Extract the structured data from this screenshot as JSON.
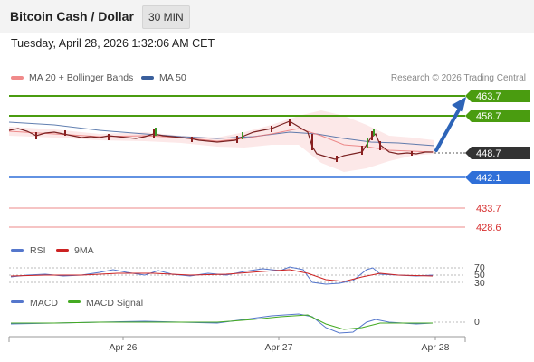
{
  "header": {
    "title": "Bitcoin Cash / Dollar",
    "interval": "30 MIN"
  },
  "timestamp": "Tuesday, April 28, 2026 1:32:06 AM CET",
  "legend": {
    "ma20": {
      "label": "MA 20 + Bollinger Bands",
      "color": "#f08a8a"
    },
    "ma50": {
      "label": "MA 50",
      "color": "#3a5f9c"
    },
    "credit": "Research © 2026 Trading Central"
  },
  "price_levels": [
    {
      "label": "463.7",
      "color": "#4a9c10",
      "kind": "resistance"
    },
    {
      "label": "458.7",
      "color": "#4a9c10",
      "kind": "resistance"
    },
    {
      "label": "448.7",
      "color": "#333333",
      "kind": "last"
    },
    {
      "label": "442.1",
      "color": "#2f6fd8",
      "kind": "support"
    },
    {
      "label": "433.7",
      "color": "#d73030",
      "kind": "support"
    },
    {
      "label": "428.6",
      "color": "#d73030",
      "kind": "support"
    }
  ],
  "rsi": {
    "label": "RSI",
    "signal_label": "9MA",
    "color": "#5577cc",
    "signal_color": "#cc2222",
    "levels": [
      "70",
      "50",
      "30"
    ]
  },
  "macd": {
    "label": "MACD",
    "signal_label": "MACD Signal",
    "color": "#5577cc",
    "signal_color": "#44aa22",
    "zero_label": "0"
  },
  "x_axis": {
    "labels": [
      "Apr 26",
      "Apr 27",
      "Apr 28"
    ]
  }
}
